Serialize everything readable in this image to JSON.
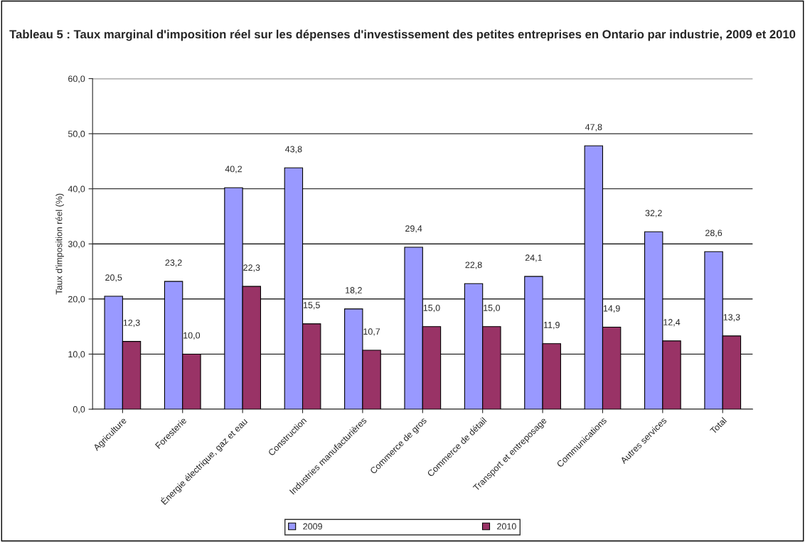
{
  "chart_data": {
    "type": "bar",
    "title": "Tableau 5 : Taux marginal d'imposition réel sur les dépenses d'investissement des petites entreprises en Ontario par industrie, 2009 et 2010",
    "ylabel": "Taux d'imposition réel (%)",
    "categories": [
      "Agriculture",
      "Foresterie",
      "Énergie électrique, gaz et eau",
      "Construction",
      "Industries manufacturières",
      "Commerce de gros",
      "Commerce de détail",
      "Transport et entreposage",
      "Communications",
      "Autres services",
      "Total"
    ],
    "series": [
      {
        "name": "2009",
        "color": "#9999ff",
        "values": [
          20.5,
          23.2,
          40.2,
          43.8,
          18.2,
          29.4,
          22.8,
          24.1,
          47.8,
          32.2,
          28.6
        ],
        "value_labels": [
          "20,5",
          "23,2",
          "40,2",
          "43,8",
          "18,2",
          "29,4",
          "22,8",
          "24,1",
          "47,8",
          "32,2",
          "28,6"
        ]
      },
      {
        "name": "2010",
        "color": "#993366",
        "values": [
          12.3,
          10.0,
          22.3,
          15.5,
          10.7,
          15.0,
          15.0,
          11.9,
          14.9,
          12.4,
          13.3
        ],
        "value_labels": [
          "12,3",
          "10,0",
          "22,3",
          "15,5",
          "10,7",
          "15,0",
          "15,0",
          "11,9",
          "14,9",
          "12,4",
          "13,3"
        ]
      }
    ],
    "ylim": [
      0,
      60
    ],
    "yticks": [
      {
        "value": 0,
        "label": "0,0"
      },
      {
        "value": 10,
        "label": "10,0"
      },
      {
        "value": 20,
        "label": "20,0"
      },
      {
        "value": 30,
        "label": "30,0"
      },
      {
        "value": 40,
        "label": "40,0"
      },
      {
        "value": 50,
        "label": "50,0"
      },
      {
        "value": 60,
        "label": "60,0"
      }
    ],
    "grid": "y",
    "legend": "bottom"
  }
}
